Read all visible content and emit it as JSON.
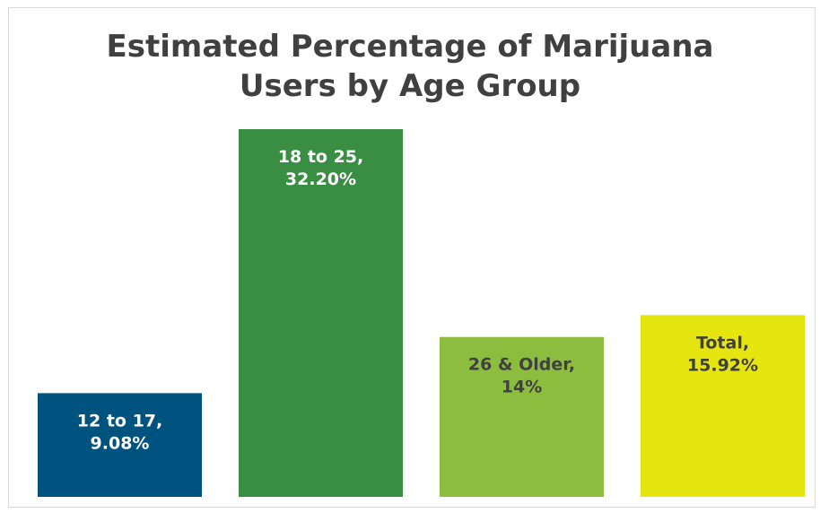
{
  "chart_data": {
    "type": "bar",
    "title_lines": [
      "Estimated Percentage of Marijuana",
      "Users by Age Group"
    ],
    "categories": [
      "12 to 17",
      "18 to 25",
      "26 & Older",
      "Total"
    ],
    "values": [
      9.08,
      32.2,
      14,
      15.92
    ],
    "value_labels": [
      "9.08%",
      "32.20%",
      "14%",
      "15.92%"
    ],
    "data_labels": [
      [
        "12 to 17,",
        "9.08%"
      ],
      [
        "18 to 25,",
        "32.20%"
      ],
      [
        "26 & Older,",
        "14%"
      ],
      [
        "Total,",
        "15.92%"
      ]
    ],
    "colors": [
      "#00527f",
      "#3a8e44",
      "#8dbd3e",
      "#e5e50f"
    ],
    "label_colors": [
      "#ffffff",
      "#ffffff",
      "#404040",
      "#404040"
    ],
    "xlabel": "",
    "ylabel": "",
    "ylim": [
      0,
      32.2
    ],
    "grid": false,
    "legend": "none"
  }
}
